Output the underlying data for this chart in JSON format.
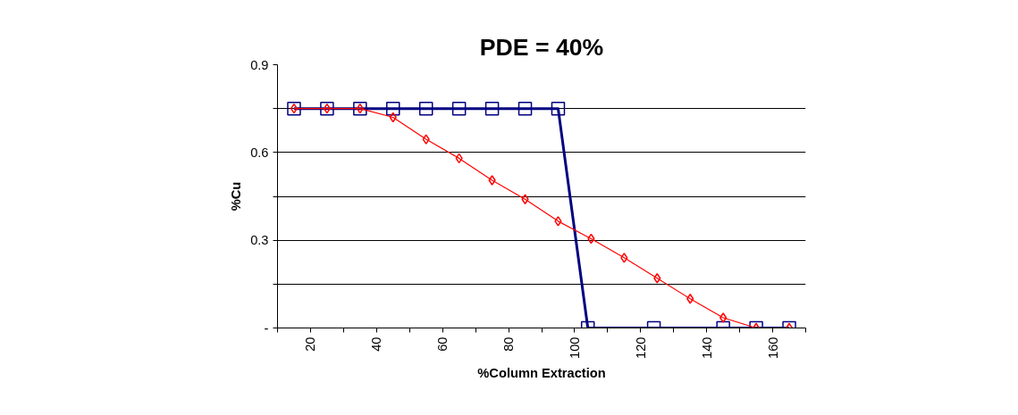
{
  "chart_data": {
    "type": "line",
    "title": "PDE = 40%",
    "xlabel": "%Column Extraction",
    "ylabel": "%Cu",
    "series": [
      {
        "color": "#000080",
        "marker": "square",
        "x": [
          15,
          25,
          35,
          45,
          55,
          65,
          75,
          85,
          95,
          104,
          124,
          145,
          155,
          165
        ],
        "values": [
          0.75,
          0.75,
          0.75,
          0.75,
          0.75,
          0.75,
          0.75,
          0.75,
          0.75,
          0,
          0,
          0,
          0,
          0
        ]
      },
      {
        "color": "#ff0000",
        "marker": "diamond",
        "x": [
          15,
          25,
          35,
          45,
          55,
          65,
          75,
          85,
          95,
          105,
          115,
          125,
          135,
          145,
          155,
          165
        ],
        "values": [
          0.75,
          0.75,
          0.75,
          0.72,
          0.645,
          0.58,
          0.505,
          0.44,
          0.365,
          0.305,
          0.24,
          0.17,
          0.1,
          0.035,
          0,
          0
        ]
      }
    ],
    "xlim": [
      10,
      170
    ],
    "xticks": [
      {
        "value": 10,
        "label": null
      },
      20,
      {
        "value": 30,
        "label": null
      },
      40,
      {
        "value": 50,
        "label": null
      },
      60,
      {
        "value": 70,
        "label": null
      },
      80,
      {
        "value": 90,
        "label": null
      },
      100,
      {
        "value": 110,
        "label": null
      },
      120,
      {
        "value": 130,
        "label": null
      },
      140,
      {
        "value": 150,
        "label": null
      },
      160,
      {
        "value": 170,
        "label": null
      }
    ],
    "ylim": [
      0,
      0.9
    ],
    "yticks": [
      {
        "value": 0,
        "label": "-"
      },
      {
        "value": 0.15,
        "label": null
      },
      0.3,
      {
        "value": 0.45,
        "label": null
      },
      0.6,
      {
        "value": 0.75,
        "label": null
      },
      0.9
    ],
    "grid": "y"
  }
}
